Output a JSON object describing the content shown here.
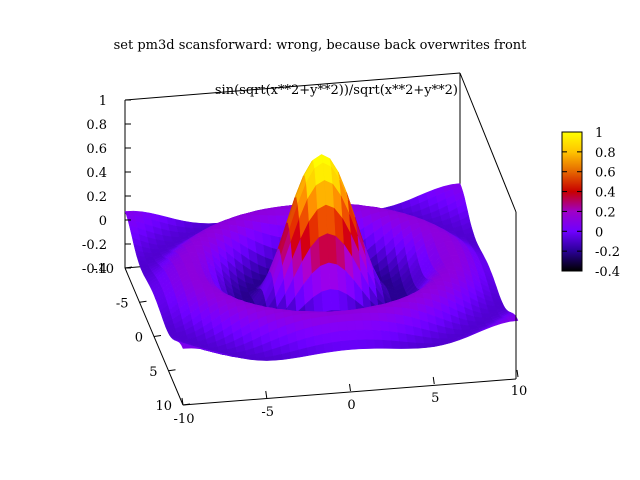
{
  "chart_data": {
    "type": "surface3d",
    "title": "set pm3d scansforward: wrong, because back overwrites front",
    "series": [
      {
        "name": "sin(sqrt(x**2+y**2))/sqrt(x**2+y**2)"
      }
    ],
    "function": "sin(sqrt(x**2+y**2))/sqrt(x**2+y**2)",
    "x_range": [
      -10,
      10
    ],
    "y_range": [
      -10,
      10
    ],
    "z_range": [
      -0.4,
      1
    ],
    "x_ticks": [
      "-10",
      "-5",
      "0",
      "5",
      "10"
    ],
    "y_ticks": [
      "-10",
      "-5",
      "0",
      "5",
      "10"
    ],
    "z_ticks": [
      "1",
      "0.8",
      "0.6",
      "0.4",
      "0.2",
      "0",
      "-0.2",
      "-0.4"
    ],
    "colorbar": {
      "range": [
        -0.4,
        1
      ],
      "ticks": [
        "1",
        "0.8",
        "0.6",
        "0.4",
        "0.2",
        "0",
        "-0.2",
        "-0.4"
      ],
      "palette": [
        "#000000",
        "#2a0096",
        "#6f00ff",
        "#9f00c8",
        "#c80000",
        "#e56600",
        "#ffc400",
        "#ffff00"
      ]
    },
    "grid": false,
    "legend_position": "top"
  }
}
